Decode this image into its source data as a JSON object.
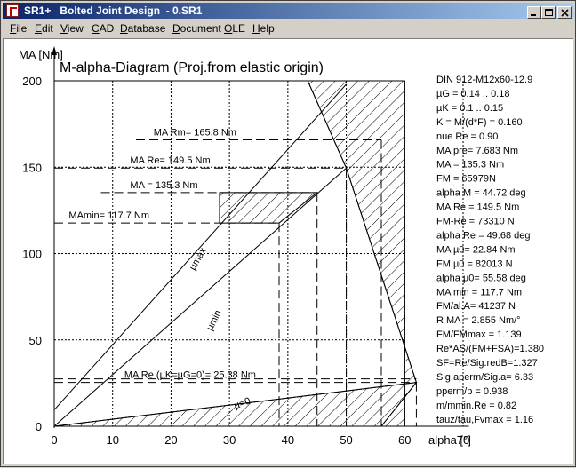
{
  "window": {
    "title": "SR1+   Bolted Joint Design  - 0.SR1"
  },
  "menu": [
    {
      "first": "F",
      "rest": "ile"
    },
    {
      "first": "E",
      "rest": "dit"
    },
    {
      "first": "V",
      "rest": "iew"
    },
    {
      "first": "C",
      "rest": "AD"
    },
    {
      "first": "D",
      "rest": "atabase"
    },
    {
      "first": "D",
      "rest": "ocument"
    },
    {
      "first": "O",
      "rest": "LE"
    },
    {
      "first": "H",
      "rest": "elp"
    }
  ],
  "chart_data": {
    "type": "line",
    "title": "M-alpha-Diagram (Proj.from elastic origin)",
    "ylabel": "MA [Nm]",
    "xlabel": "alpha [°]",
    "xlim": [
      0,
      70
    ],
    "ylim": [
      0,
      200
    ],
    "xticks": [
      0,
      10,
      20,
      30,
      40,
      50,
      60,
      70
    ],
    "yticks": [
      0,
      50,
      100,
      150,
      200
    ],
    "grid": true,
    "series": [
      {
        "name": "µmax",
        "points": [
          [
            0,
            9.5
          ],
          [
            50,
            198
          ]
        ]
      },
      {
        "name": "µmin",
        "points": [
          [
            0,
            0
          ],
          [
            50,
            149.5
          ]
        ]
      },
      {
        "name": "µ=0",
        "points": [
          [
            0,
            0
          ],
          [
            62,
            25.38
          ]
        ]
      },
      {
        "name": "",
        "points": [
          [
            43.4,
            200
          ],
          [
            50,
            149.5
          ],
          [
            62,
            25.38
          ]
        ]
      }
    ],
    "annotations": [
      {
        "label": "MA Rm= 165.8 Nm",
        "value": 165.8
      },
      {
        "label": "MA Re= 149.5 Nm",
        "value": 149.5
      },
      {
        "label": "MA = 135.3 Nm",
        "value": 135.3
      },
      {
        "label": "MAmin= 117.7 Nm",
        "value": 117.7
      },
      {
        "label": "MA Re (µK=µG=0)= 25.38 Nm",
        "value": 25.38
      }
    ],
    "line_labels": [
      "µmax",
      "µmin",
      "µ=0"
    ],
    "results": [
      "DIN 912-M12x60-12.9",
      "µG = 0.14 .. 0.18",
      "µK = 0.1 .. 0.15",
      "K = M/(d*F) = 0.160",
      "nue Re = 0.90",
      "MA pre= 7.683 Nm",
      "MA = 135.3 Nm",
      "FM = 65979N",
      "alpha M = 44.72 deg",
      "MA Re = 149.5 Nm",
      "FM-Re = 73310 N",
      "alpha Re = 49.68 deg",
      "MA µ0= 22.84 Nm",
      "FM µ0 = 82013 N",
      "alpha µ0= 55.58 deg",
      "MA min = 117.7 Nm",
      "FM/al.A= 41237 N",
      "R MA = 2.855 Nm/°",
      "FM/FMmax = 1.139",
      "Re*AS/(FM+FSA)=1.380",
      "SF=Re/Sig.redB=1.327",
      "Sig.aperm/Sig.a= 6.33",
      "pperm/p = 0.938",
      "m/mmin.Re = 0.82",
      "tauz/tau,Fvmax = 1.16"
    ]
  }
}
